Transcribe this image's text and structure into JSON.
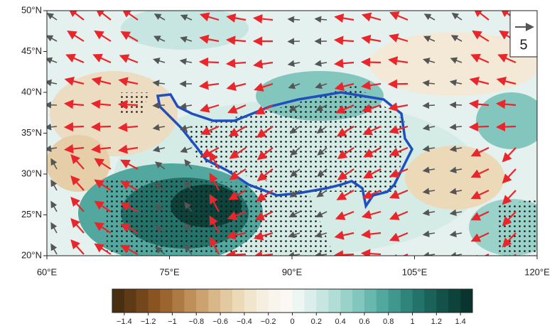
{
  "map": {
    "xlim": [
      60,
      120
    ],
    "ylim": [
      20,
      50
    ],
    "xticks": [
      {
        "value": 60,
        "label": "60°E"
      },
      {
        "value": 75,
        "label": "75°E"
      },
      {
        "value": 90,
        "label": "90°E"
      },
      {
        "value": 105,
        "label": "105°E"
      },
      {
        "value": 120,
        "label": "120°E"
      }
    ],
    "yticks": [
      {
        "value": 20,
        "label": "20°N"
      },
      {
        "value": 25,
        "label": "25°N"
      },
      {
        "value": 30,
        "label": "30°N"
      },
      {
        "value": 35,
        "label": "35°N"
      },
      {
        "value": 40,
        "label": "40°N"
      },
      {
        "value": 45,
        "label": "45°N"
      },
      {
        "value": 50,
        "label": "50°N"
      }
    ],
    "reference_vector": 5
  },
  "colorbar": {
    "lim": [
      -1.5,
      1.5
    ],
    "colors": [
      "#4a2e12",
      "#5e3a16",
      "#73461b",
      "#8a5422",
      "#9c6530",
      "#ae7a44",
      "#bf8f5a",
      "#cca370",
      "#d8b788",
      "#e2c9a0",
      "#ebd9b8",
      "#f1e5cd",
      "#f6eee0",
      "#f9f4ec",
      "#fbf8f3",
      "#eef6f4",
      "#dceeeb",
      "#c8e6e1",
      "#b2ddd6",
      "#9ad2ca",
      "#82c6bd",
      "#69b8ae",
      "#52a89e",
      "#3f978d",
      "#30857b",
      "#24736a",
      "#1b6259",
      "#145249",
      "#0e433b",
      "#0a352e"
    ],
    "ticks": [
      {
        "value": -1.4,
        "label": "−1.4"
      },
      {
        "value": -1.2,
        "label": "−1.2"
      },
      {
        "value": -1,
        "label": "−1"
      },
      {
        "value": -0.8,
        "label": "−0.8"
      },
      {
        "value": -0.6,
        "label": "−0.6"
      },
      {
        "value": -0.4,
        "label": "−0.4"
      },
      {
        "value": -0.2,
        "label": "−0.2"
      },
      0,
      0.2,
      0.4,
      0.6,
      0.8,
      1,
      1.2,
      1.4
    ]
  }
}
